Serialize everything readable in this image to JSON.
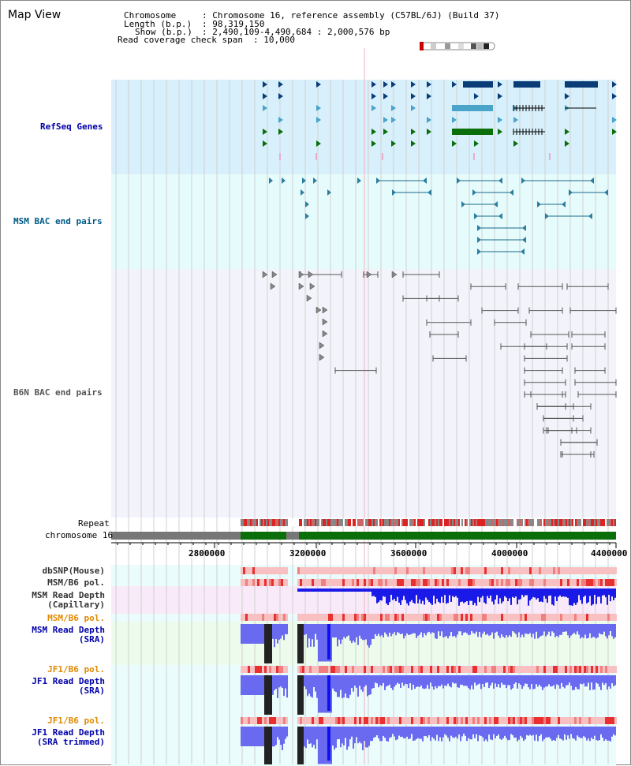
{
  "title": "Map View",
  "info": {
    "chromosome_key": "Chromosome",
    "chromosome_val": ": Chromosome 16, reference assembly (C57BL/6J) (Build 37)",
    "length_key": "Length (b.p.)",
    "length_val": ": 98,319,150",
    "show_key": "Show (b.p.)",
    "show_val": ": 2,490,109-4,490,684 : 2,000,576 bp",
    "coverage_key": "Read coverage check span",
    "coverage_val": ": 10,000"
  },
  "tracks": {
    "refseq": {
      "label": "RefSeq Genes",
      "color": "#0000aa"
    },
    "msm_bac": {
      "label": "MSM BAC end pairs",
      "color": "#005a87"
    },
    "b6n_bac": {
      "label": "B6N BAC end pairs",
      "color": "#555555"
    }
  },
  "repeat_label": "Repeat",
  "chrom_label": "chromosome 16",
  "axis_ticks": [
    "2800000",
    "3200000",
    "3600000",
    "4000000",
    "4400000"
  ],
  "rows": [
    {
      "label": "dbSNP(Mouse)",
      "color": "#333333"
    },
    {
      "label": "MSM/B6 pol.",
      "color": "#333333"
    },
    {
      "label": "MSM Read Depth\n(Capillary)",
      "color": "#333333"
    },
    {
      "label": "MSM/B6 pol.",
      "color": "#e08a00"
    },
    {
      "label": "MSM Read Depth\n(SRA)",
      "color": "#0000aa"
    },
    {
      "label": "JF1/B6 pol.",
      "color": "#e08a00"
    },
    {
      "label": "JF1 Read Depth\n(SRA)",
      "color": "#0000aa"
    },
    {
      "label": "JF1/B6 pol.",
      "color": "#e08a00"
    },
    {
      "label": "JF1 Read Depth\n(SRA trimmed)",
      "color": "#0000aa"
    }
  ],
  "colors": {
    "refseq_bg": "#d7f0fb",
    "bac_bg": "#e6fbfb",
    "b6n_bg": "#f3f3fb",
    "gene_dark": "#0a3c78",
    "gene_light": "#4aa3c8",
    "gene_green": "#0a6e0a",
    "snp": "#f4b6b6",
    "depth_blue": "#2a2aee",
    "chrom_green": "#0a6e0a",
    "chrom_gray": "#777777"
  }
}
